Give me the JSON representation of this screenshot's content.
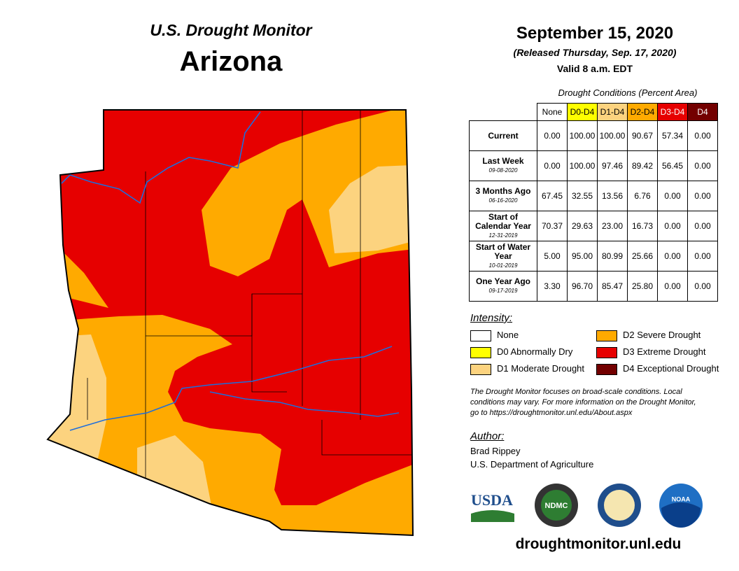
{
  "header": {
    "title": "U.S. Drought Monitor",
    "state": "Arizona",
    "date": "September 15, 2020",
    "released": "(Released Thursday, Sep. 17, 2020)",
    "valid": "Valid 8 a.m. EDT"
  },
  "table": {
    "caption": "Drought Conditions (Percent Area)",
    "columns": [
      "None",
      "D0-D4",
      "D1-D4",
      "D2-D4",
      "D3-D4",
      "D4"
    ],
    "rows": [
      {
        "label": "Current",
        "values": [
          "0.00",
          "100.00",
          "100.00",
          "90.67",
          "57.34",
          "0.00"
        ]
      },
      {
        "label": "Last Week",
        "date": "09-08-2020",
        "values": [
          "0.00",
          "100.00",
          "97.46",
          "89.42",
          "56.45",
          "0.00"
        ]
      },
      {
        "label": "3 Months Ago",
        "date": "06-16-2020",
        "values": [
          "67.45",
          "32.55",
          "13.56",
          "6.76",
          "0.00",
          "0.00"
        ]
      },
      {
        "label": "Start of Calendar Year",
        "date": "12-31-2019",
        "values": [
          "70.37",
          "29.63",
          "23.00",
          "16.73",
          "0.00",
          "0.00"
        ]
      },
      {
        "label": "Start of Water Year",
        "date": "10-01-2019",
        "values": [
          "5.00",
          "95.00",
          "80.99",
          "25.66",
          "0.00",
          "0.00"
        ]
      },
      {
        "label": "One Year Ago",
        "date": "09-17-2019",
        "values": [
          "3.30",
          "96.70",
          "85.47",
          "25.80",
          "0.00",
          "0.00"
        ]
      }
    ]
  },
  "legend": {
    "title": "Intensity:",
    "items": [
      "None",
      "D0 Abnormally Dry",
      "D1 Moderate Drought",
      "D2 Severe Drought",
      "D3 Extreme Drought",
      "D4 Exceptional Drought"
    ]
  },
  "note": "The Drought Monitor focuses on broad-scale conditions. Local conditions may vary. For more information on the Drought Monitor, go to https://droughtmonitor.unl.edu/About.aspx",
  "author": {
    "heading": "Author:",
    "name": "Brad Rippey",
    "organization": "U.S. Department of Agriculture"
  },
  "logos": [
    "USDA",
    "NDMC",
    "NOAA"
  ],
  "url": "droughtmonitor.unl.edu"
}
